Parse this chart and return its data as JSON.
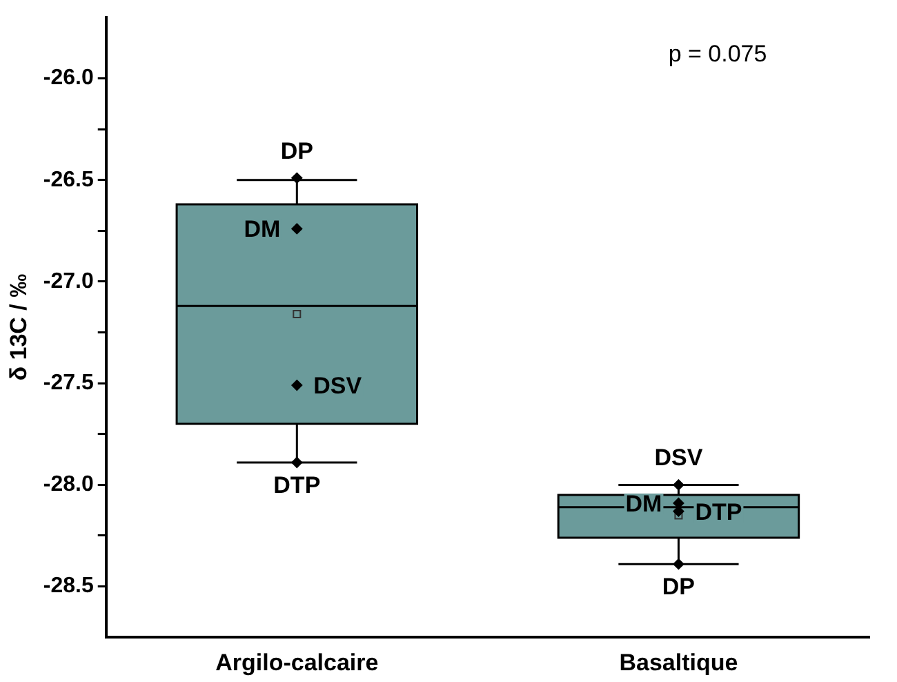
{
  "chart_data": {
    "type": "box",
    "categories": [
      "Argilo-calcaire",
      "Basaltique"
    ],
    "ylabel": "δ 13C / ‰",
    "series": [
      {
        "type": "box",
        "color": "#6b9b9b",
        "boxes": [
          {
            "low": -27.89,
            "q1": -27.7,
            "median": -27.12,
            "q3": -26.62,
            "high": -26.5,
            "mean": -27.16
          },
          {
            "low": -28.39,
            "q1": -28.26,
            "median": -28.11,
            "q3": -28.05,
            "high": -28.0,
            "mean": -28.15
          }
        ]
      },
      {
        "type": "scatter",
        "color": "#000000",
        "x": [
          "Argilo-calcaire",
          "Argilo-calcaire",
          "Argilo-calcaire",
          "Argilo-calcaire",
          "Basaltique",
          "Basaltique",
          "Basaltique",
          "Basaltique"
        ],
        "values": [
          -26.49,
          -26.74,
          -27.51,
          -27.89,
          -28.0,
          -28.09,
          -28.13,
          -28.39
        ]
      }
    ],
    "marker": "diamond",
    "grid": false,
    "legend": false,
    "ylim": [
      -28.75,
      -25.7
    ],
    "yticks": [
      {
        "value": -26,
        "label": "-26.0"
      },
      {
        "value": -26.25,
        "label": null
      },
      {
        "value": -26.5,
        "label": "-26.5"
      },
      {
        "value": -26.75,
        "label": null
      },
      {
        "value": -27,
        "label": "-27.0"
      },
      {
        "value": -27.25,
        "label": null
      },
      {
        "value": -27.5,
        "label": "-27.5"
      },
      {
        "value": -27.75,
        "label": null
      },
      {
        "value": -28,
        "label": "-28.0"
      },
      {
        "value": -28.25,
        "label": null
      },
      {
        "value": -28.5,
        "label": "-28.5"
      }
    ],
    "annotations": [
      "p = 0.075",
      {
        "text": "DP",
        "x": "Argilo-calcaire",
        "y": -26.49
      },
      {
        "text": "DM",
        "x": "Argilo-calcaire",
        "y": -26.74
      },
      {
        "text": "DSV",
        "x": "Argilo-calcaire",
        "y": -27.51
      },
      {
        "text": "DTP",
        "x": "Argilo-calcaire",
        "y": -27.89
      },
      {
        "text": "DSV",
        "x": "Basaltique",
        "y": -28.0
      },
      {
        "text": "DM",
        "x": "Basaltique",
        "y": -28.09
      },
      {
        "text": "DTP",
        "x": "Basaltique",
        "y": -28.13
      },
      {
        "text": "DP",
        "x": "Basaltique",
        "y": -28.39
      }
    ]
  }
}
